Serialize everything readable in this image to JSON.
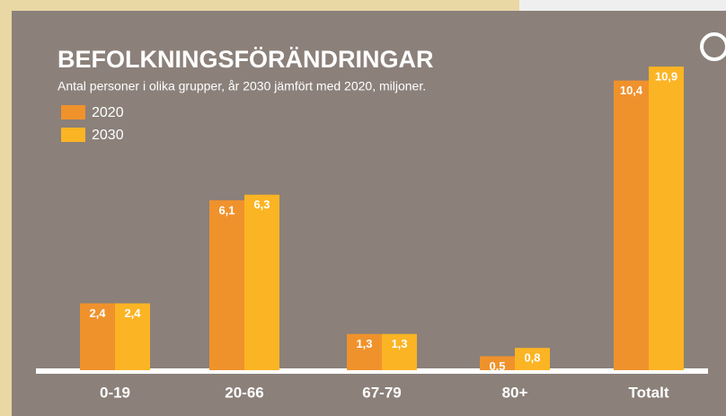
{
  "chart_data": {
    "type": "bar",
    "title": "BEFOLKNINGSFÖRÄNDRINGAR",
    "subtitle": "Antal personer i olika grupper, år 2030 jämfört med 2020, miljoner.",
    "categories": [
      "0-19",
      "20-66",
      "67-79",
      "80+",
      "Totalt"
    ],
    "series": [
      {
        "name": "2020",
        "color": "#f0922c",
        "values": [
          2.4,
          6.1,
          1.3,
          0.5,
          10.4
        ],
        "value_labels": [
          "2,4",
          "6,1",
          "1,3",
          "0,5",
          "10,4"
        ]
      },
      {
        "name": "2030",
        "color": "#fbb423",
        "values": [
          2.4,
          6.3,
          1.3,
          0.8,
          10.9
        ],
        "value_labels": [
          "2,4",
          "6,3",
          "1,3",
          "0,8",
          "10,9"
        ]
      }
    ]
  }
}
